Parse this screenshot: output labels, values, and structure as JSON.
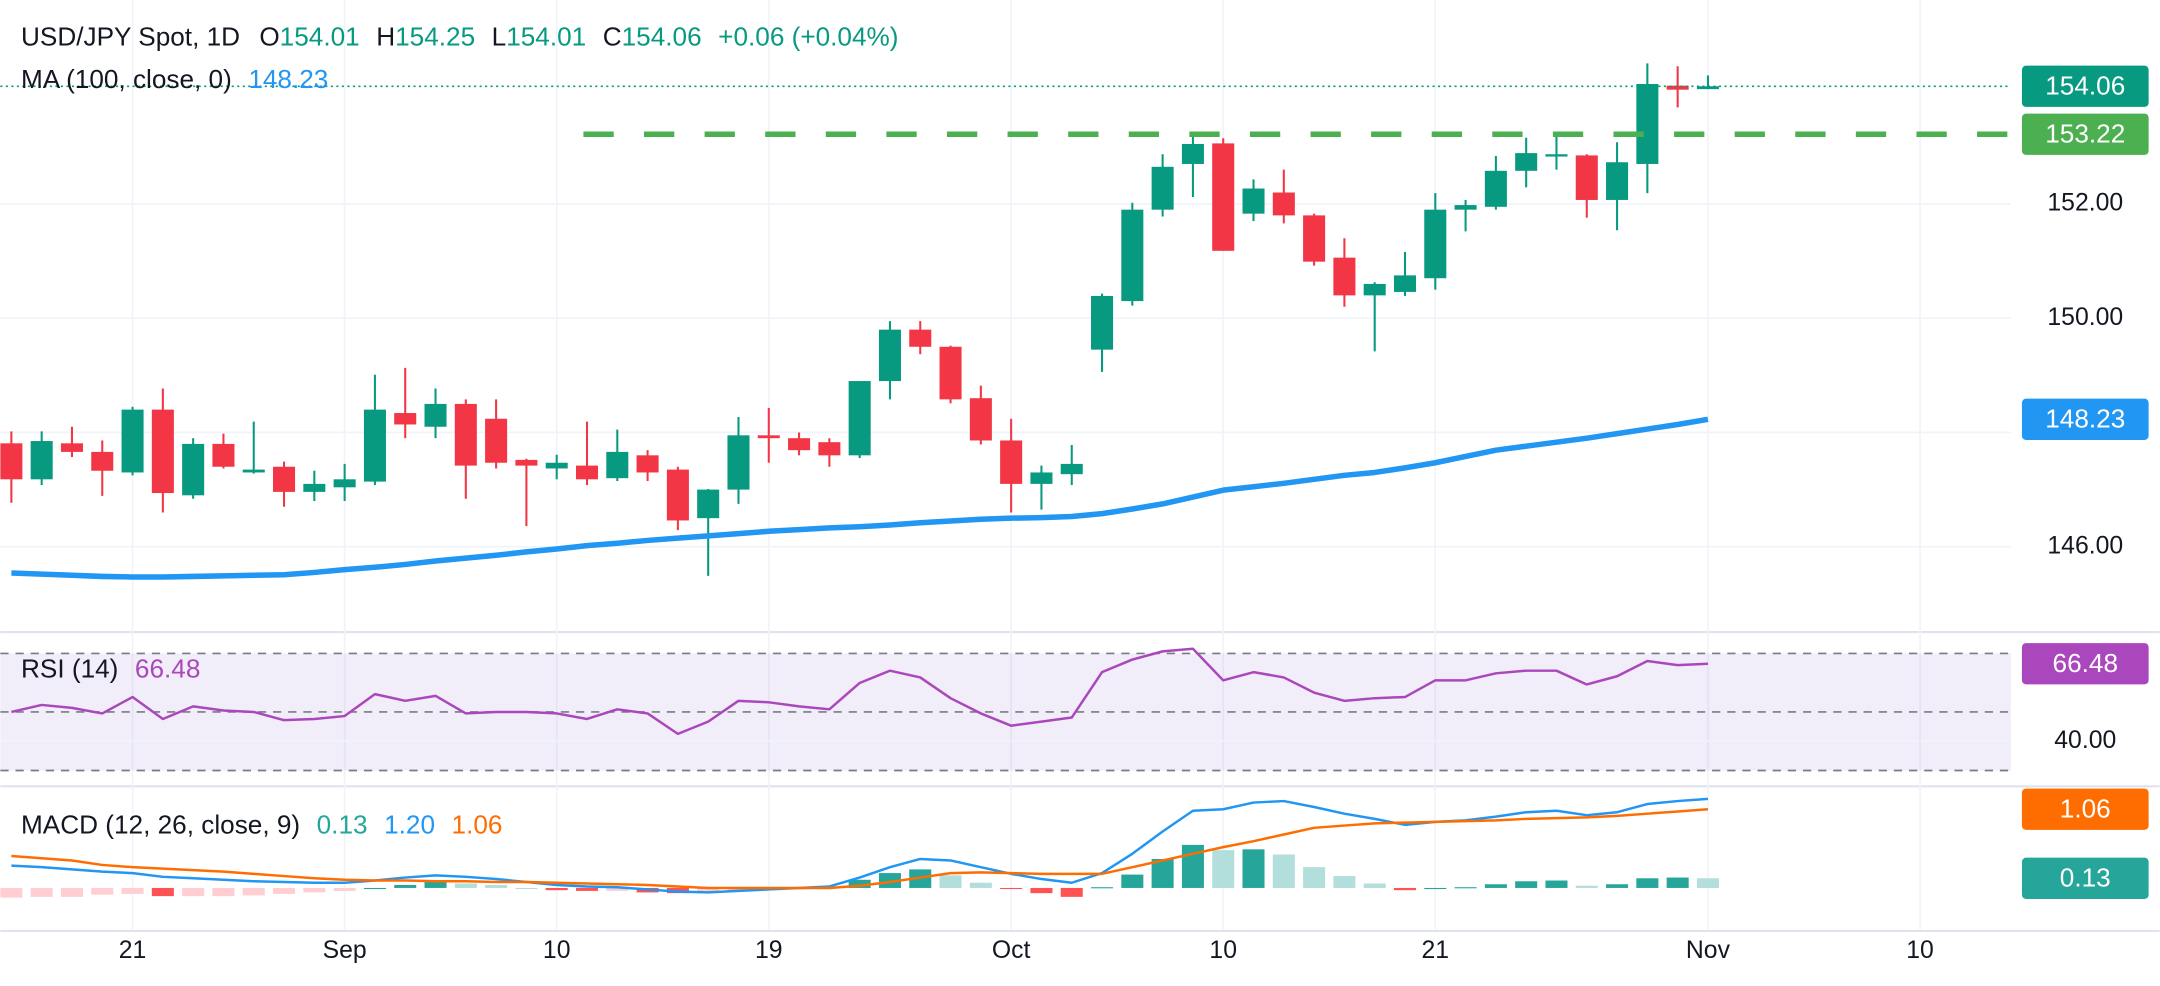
{
  "chart_data": [
    {
      "type": "candlestick",
      "title": "USD/JPY Spot, 1D",
      "ohlc_keys": [
        "O",
        "H",
        "L",
        "C"
      ],
      "change": "+0.06 (+0.04%)",
      "categories": [
        null,
        null,
        null,
        null,
        "21",
        null,
        null,
        null,
        null,
        null,
        null,
        "Sep",
        null,
        null,
        null,
        null,
        null,
        null,
        "10",
        null,
        null,
        null,
        null,
        null,
        null,
        "19",
        null,
        null,
        null,
        null,
        null,
        null,
        null,
        "Oct",
        null,
        null,
        null,
        null,
        null,
        null,
        "10",
        null,
        null,
        null,
        null,
        null,
        null,
        "21",
        null,
        null,
        null,
        null,
        null,
        null,
        null,
        null,
        "Nov",
        null,
        null,
        null,
        null,
        null,
        null,
        "10",
        null,
        null
      ],
      "open": [
        147.81,
        147.18,
        147.81,
        147.66,
        147.3,
        148.4,
        146.9,
        147.8,
        147.3,
        147.4,
        146.96,
        147.04,
        147.14,
        148.34,
        148.1,
        148.5,
        148.24,
        147.52,
        147.37,
        147.42,
        147.2,
        147.6,
        147.35,
        146.5,
        147.0,
        147.95,
        147.9,
        147.83,
        147.6,
        148.9,
        149.8,
        149.5,
        148.6,
        147.86,
        147.1,
        147.27,
        149.45,
        150.3,
        151.9,
        152.7,
        153.06,
        151.83,
        152.2,
        151.8,
        151.06,
        150.4,
        150.46,
        150.7,
        151.9,
        151.95,
        152.58,
        152.83,
        152.85,
        152.07,
        152.7,
        154.07,
        154.01,
        null,
        null,
        null,
        null,
        null,
        null,
        null,
        null,
        null
      ],
      "high": [
        148.02,
        148.02,
        148.1,
        147.86,
        148.45,
        148.77,
        147.9,
        147.98,
        148.19,
        147.49,
        147.33,
        147.45,
        149.01,
        149.13,
        148.77,
        148.58,
        148.58,
        147.54,
        147.61,
        148.19,
        148.05,
        147.69,
        147.4,
        147.01,
        148.27,
        148.43,
        148.0,
        147.9,
        148.9,
        149.95,
        149.95,
        149.52,
        148.82,
        148.24,
        147.42,
        147.78,
        150.43,
        152.02,
        152.87,
        153.23,
        153.15,
        152.43,
        152.6,
        151.83,
        151.4,
        150.63,
        151.16,
        152.19,
        152.07,
        152.84,
        153.16,
        153.25,
        152.87,
        153.08,
        154.46,
        154.41,
        154.25,
        null,
        null,
        null,
        null,
        null,
        null,
        null,
        null,
        null
      ],
      "low": [
        146.77,
        147.08,
        147.57,
        146.89,
        147.25,
        146.6,
        146.84,
        147.37,
        147.28,
        146.7,
        146.8,
        146.8,
        147.08,
        147.9,
        147.9,
        146.84,
        147.37,
        146.36,
        147.18,
        147.08,
        147.15,
        147.15,
        146.29,
        145.49,
        146.75,
        147.47,
        147.6,
        147.4,
        147.55,
        148.58,
        149.37,
        148.51,
        147.79,
        146.6,
        146.65,
        147.08,
        149.06,
        150.22,
        151.78,
        152.12,
        151.18,
        151.7,
        151.66,
        150.92,
        150.2,
        149.42,
        150.39,
        150.5,
        151.52,
        151.9,
        152.29,
        152.6,
        151.76,
        151.54,
        152.19,
        153.69,
        154.01,
        null,
        null,
        null,
        null,
        null,
        null,
        null,
        null,
        null
      ],
      "close": [
        147.18,
        147.85,
        147.66,
        147.33,
        148.4,
        146.94,
        147.8,
        147.4,
        147.35,
        146.96,
        147.1,
        147.18,
        148.4,
        148.14,
        148.5,
        147.42,
        147.47,
        147.42,
        147.47,
        147.18,
        147.66,
        147.3,
        146.46,
        147.0,
        147.95,
        147.9,
        147.69,
        147.6,
        148.9,
        149.8,
        149.5,
        148.58,
        147.86,
        147.1,
        147.3,
        147.45,
        150.39,
        151.9,
        152.65,
        153.05,
        151.18,
        152.27,
        151.8,
        150.99,
        150.4,
        150.6,
        150.75,
        151.9,
        151.98,
        152.58,
        152.89,
        152.87,
        152.07,
        152.73,
        154.1,
        154.0,
        154.06,
        null,
        null,
        null,
        null,
        null,
        null,
        null,
        null,
        null
      ],
      "up_color": "#089981",
      "down_color": "#f23645",
      "series": [
        {
          "name": "MA (100, close, 0)",
          "color": "#2196f3",
          "values": [
            145.54,
            145.52,
            145.5,
            145.48,
            145.47,
            145.47,
            145.48,
            145.49,
            145.5,
            145.51,
            145.55,
            145.6,
            145.64,
            145.69,
            145.75,
            145.8,
            145.85,
            145.91,
            145.96,
            146.02,
            146.06,
            146.11,
            146.15,
            146.19,
            146.23,
            146.27,
            146.3,
            146.33,
            146.35,
            146.38,
            146.42,
            146.45,
            146.48,
            146.5,
            146.51,
            146.53,
            146.58,
            146.66,
            146.75,
            146.87,
            146.99,
            147.05,
            147.11,
            147.18,
            147.25,
            147.3,
            147.38,
            147.47,
            147.58,
            147.69,
            147.76,
            147.83,
            147.9,
            147.98,
            148.06,
            148.14,
            148.23,
            null,
            null,
            null,
            null,
            null,
            null,
            null,
            null,
            null
          ]
        }
      ],
      "lines": [
        {
          "value": 153.22,
          "color": "#4caf50"
        }
      ],
      "ylim": [
        144.53,
        155.57
      ],
      "yticks": [
        {
          "value": 146,
          "label": "146.00"
        },
        {
          "value": 148,
          "label": "148.00"
        },
        {
          "value": 150,
          "label": "150.00"
        },
        {
          "value": 152,
          "label": "152.00"
        }
      ],
      "grid": true
    },
    {
      "type": "line",
      "title": "RSI (14)",
      "color": "#ab47bc",
      "values": [
        50,
        52.4,
        51.4,
        49.5,
        55.1,
        47.6,
        51.9,
        50.5,
        50,
        47.2,
        47.6,
        48.6,
        56.1,
        53.8,
        55.5,
        49.5,
        50,
        50,
        49.5,
        47.6,
        50.9,
        49.5,
        42.5,
        46.7,
        53.8,
        53.3,
        51.9,
        50.9,
        59.9,
        64.1,
        61.8,
        54.7,
        49.5,
        45.3,
        46.7,
        48.1,
        63.6,
        67.9,
        70.7,
        71.6,
        60.8,
        63.6,
        61.8,
        56.6,
        53.8,
        54.7,
        55.1,
        60.8,
        60.8,
        63.2,
        64.1,
        64.1,
        59.4,
        62.2,
        67.4,
        66,
        66.48,
        null,
        null,
        null,
        null,
        null,
        null,
        null,
        null,
        null
      ],
      "levels": [
        70,
        50,
        30
      ],
      "band": [
        30,
        70
      ],
      "band_color": "#7e57c2",
      "ylim": [
        25.06,
        76.82
      ],
      "yticks": [
        {
          "value": 40,
          "label": "40.00"
        }
      ]
    },
    {
      "type": "macd",
      "title": "MACD (12, 26, close, 9)",
      "histogram": {
        "colors": [
          "#26a69a",
          "#b2dfdb",
          "#ff5252",
          "#ffcdd2"
        ],
        "values": [
          -0.13,
          -0.12,
          -0.12,
          -0.09,
          -0.08,
          -0.11,
          -0.11,
          -0.11,
          -0.1,
          -0.08,
          -0.06,
          -0.04,
          0,
          0.04,
          0.08,
          0.06,
          0.04,
          0,
          -0.03,
          -0.04,
          -0.04,
          -0.06,
          -0.07,
          -0.06,
          -0.04,
          -0.02,
          0,
          0.02,
          0.11,
          0.2,
          0.25,
          0.17,
          0.07,
          -0.01,
          -0.07,
          -0.12,
          0.01,
          0.18,
          0.39,
          0.58,
          0.51,
          0.52,
          0.45,
          0.28,
          0.16,
          0.06,
          -0.03,
          0,
          0.01,
          0.05,
          0.09,
          0.1,
          0.03,
          0.05,
          0.13,
          0.14,
          0.13,
          null,
          null,
          null,
          null,
          null,
          null,
          null,
          null,
          null
        ]
      },
      "series": [
        {
          "color": "#2196f3",
          "values": [
            0.3,
            0.28,
            0.25,
            0.22,
            0.2,
            0.15,
            0.13,
            0.11,
            0.09,
            0.08,
            0.07,
            0.07,
            0.1,
            0.14,
            0.17,
            0.15,
            0.12,
            0.08,
            0.04,
            0.02,
            0.01,
            -0.02,
            -0.05,
            -0.06,
            -0.04,
            -0.02,
            0,
            0.02,
            0.14,
            0.28,
            0.39,
            0.37,
            0.28,
            0.19,
            0.12,
            0.07,
            0.2,
            0.46,
            0.76,
            1.04,
            1.06,
            1.15,
            1.17,
            1.09,
            1.0,
            0.93,
            0.85,
            0.89,
            0.91,
            0.96,
            1.02,
            1.04,
            0.98,
            1.02,
            1.13,
            1.17,
            1.2,
            null,
            null,
            null,
            null,
            null,
            null,
            null,
            null,
            null
          ],
          "value_labels": [
            null,
            null,
            null,
            null,
            null,
            null,
            null,
            null,
            null,
            null,
            null,
            null,
            null,
            null,
            null,
            null,
            null,
            null,
            null,
            null,
            null,
            null,
            null,
            null,
            null,
            null,
            null,
            null,
            null,
            null,
            null,
            null,
            null,
            null,
            null,
            null,
            null,
            null,
            null,
            null,
            null,
            null,
            null,
            null,
            null,
            null,
            null,
            null,
            null,
            null,
            null,
            null,
            null,
            null,
            null,
            null,
            "1.20",
            null,
            null,
            null,
            null,
            null,
            null,
            null,
            null,
            null
          ]
        },
        {
          "color": "#ff6d00",
          "values": [
            0.43,
            0.4,
            0.37,
            0.31,
            0.28,
            0.26,
            0.24,
            0.22,
            0.19,
            0.16,
            0.13,
            0.11,
            0.1,
            0.1,
            0.09,
            0.09,
            0.08,
            0.08,
            0.07,
            0.06,
            0.05,
            0.04,
            0.02,
            0,
            0,
            0,
            0,
            0,
            0.03,
            0.08,
            0.14,
            0.2,
            0.21,
            0.2,
            0.19,
            0.19,
            0.19,
            0.28,
            0.37,
            0.46,
            0.55,
            0.63,
            0.72,
            0.81,
            0.84,
            0.87,
            0.88,
            0.89,
            0.9,
            0.91,
            0.93,
            0.94,
            0.95,
            0.97,
            1.0,
            1.03,
            1.06,
            null,
            null,
            null,
            null,
            null,
            null,
            null,
            null,
            null
          ]
        }
      ],
      "ylim": [
        -0.56,
        1.35
      ]
    }
  ]
}
